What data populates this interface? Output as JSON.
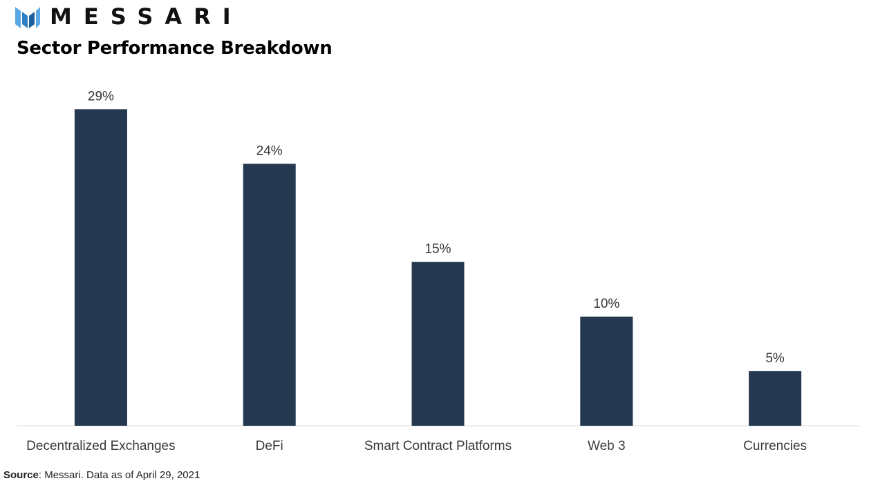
{
  "brand": {
    "name": "MESSARI",
    "colors": {
      "mark_light": "#5aa9e6",
      "mark_dark": "#1f5f9e",
      "wordmark": "#111111"
    }
  },
  "chart_data": {
    "type": "bar",
    "title": "Sector Performance Breakdown",
    "categories": [
      "Decentralized Exchanges",
      "DeFi",
      "Smart Contract Platforms",
      "Web 3",
      "Currencies"
    ],
    "values": [
      29,
      24,
      15,
      10,
      5
    ],
    "data_labels": [
      "29%",
      "24%",
      "15%",
      "10%",
      "5%"
    ],
    "unit": "%",
    "xlabel": "",
    "ylabel": "",
    "ylim": [
      0,
      33
    ],
    "grid": false,
    "legend": "none",
    "bar_color": "#243850",
    "axis_color": "#d9d9d9"
  },
  "source": {
    "label": "Source",
    "text": ": Messari. Data as of April 29, 2021"
  }
}
